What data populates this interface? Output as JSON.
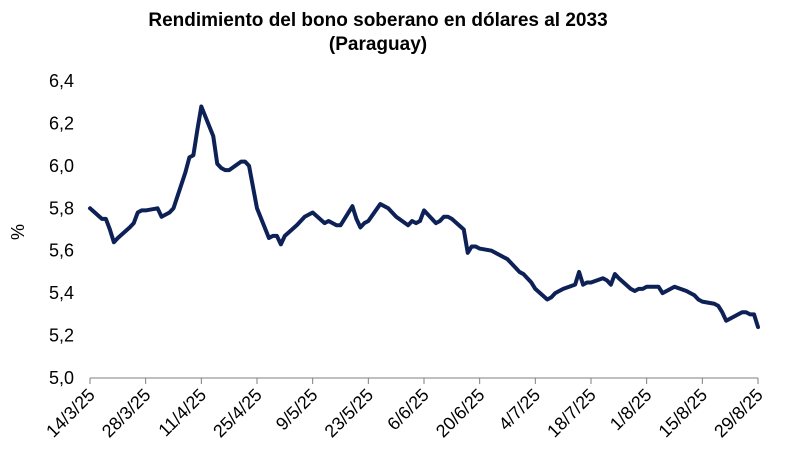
{
  "chart_data": {
    "type": "line",
    "title": "Rendimiento del bono soberano en dólares al 2033",
    "subtitle": "(Paraguay)",
    "xlabel": "",
    "ylabel": "%",
    "ylim": [
      5.0,
      6.4
    ],
    "y_ticks": [
      "6,4",
      "6,2",
      "6,0",
      "5,8",
      "5,6",
      "5,4",
      "5,2",
      "5,0"
    ],
    "x_ticks": [
      "14/3/25",
      "28/3/25",
      "11/4/25",
      "25/4/25",
      "9/5/25",
      "23/5/25",
      "6/6/25",
      "20/6/25",
      "4/7/25",
      "18/7/25",
      "1/8/25",
      "15/8/25",
      "29/8/25"
    ],
    "grid": false,
    "line_color": "#0d2157",
    "series": [
      {
        "name": "",
        "x": [
          "2025-03-14",
          "2025-03-17",
          "2025-03-18",
          "2025-03-19",
          "2025-03-20",
          "2025-03-21",
          "2025-03-24",
          "2025-03-25",
          "2025-03-26",
          "2025-03-27",
          "2025-03-28",
          "2025-03-31",
          "2025-04-01",
          "2025-04-02",
          "2025-04-03",
          "2025-04-04",
          "2025-04-07",
          "2025-04-08",
          "2025-04-09",
          "2025-04-10",
          "2025-04-11",
          "2025-04-14",
          "2025-04-15",
          "2025-04-16",
          "2025-04-17",
          "2025-04-18",
          "2025-04-21",
          "2025-04-22",
          "2025-04-23",
          "2025-04-24",
          "2025-04-25",
          "2025-04-28",
          "2025-04-29",
          "2025-04-30",
          "2025-05-01",
          "2025-05-02",
          "2025-05-05",
          "2025-05-06",
          "2025-05-07",
          "2025-05-08",
          "2025-05-09",
          "2025-05-12",
          "2025-05-13",
          "2025-05-14",
          "2025-05-15",
          "2025-05-16",
          "2025-05-19",
          "2025-05-20",
          "2025-05-21",
          "2025-05-22",
          "2025-05-23",
          "2025-05-26",
          "2025-05-27",
          "2025-05-28",
          "2025-05-29",
          "2025-05-30",
          "2025-06-02",
          "2025-06-03",
          "2025-06-04",
          "2025-06-05",
          "2025-06-06",
          "2025-06-09",
          "2025-06-10",
          "2025-06-11",
          "2025-06-12",
          "2025-06-13",
          "2025-06-16",
          "2025-06-17",
          "2025-06-18",
          "2025-06-19",
          "2025-06-20",
          "2025-06-23",
          "2025-06-24",
          "2025-06-25",
          "2025-06-26",
          "2025-06-27",
          "2025-06-30",
          "2025-07-01",
          "2025-07-02",
          "2025-07-03",
          "2025-07-04",
          "2025-07-07",
          "2025-07-08",
          "2025-07-09",
          "2025-07-10",
          "2025-07-11",
          "2025-07-14",
          "2025-07-15",
          "2025-07-16",
          "2025-07-17",
          "2025-07-18",
          "2025-07-21",
          "2025-07-22",
          "2025-07-23",
          "2025-07-24",
          "2025-07-25",
          "2025-07-28",
          "2025-07-29",
          "2025-07-30",
          "2025-07-31",
          "2025-08-01",
          "2025-08-04",
          "2025-08-05",
          "2025-08-06",
          "2025-08-07",
          "2025-08-08",
          "2025-08-11",
          "2025-08-12",
          "2025-08-13",
          "2025-08-14",
          "2025-08-15",
          "2025-08-18",
          "2025-08-19",
          "2025-08-20",
          "2025-08-21",
          "2025-08-22",
          "2025-08-25",
          "2025-08-26",
          "2025-08-27",
          "2025-08-28",
          "2025-08-29"
        ],
        "values": [
          5.8,
          5.75,
          5.75,
          5.7,
          5.64,
          5.66,
          5.71,
          5.73,
          5.78,
          5.79,
          5.79,
          5.8,
          5.76,
          5.77,
          5.78,
          5.8,
          5.97,
          6.04,
          6.05,
          6.17,
          6.28,
          6.14,
          6.01,
          5.99,
          5.98,
          5.98,
          6.02,
          6.02,
          6.0,
          5.9,
          5.8,
          5.66,
          5.67,
          5.67,
          5.63,
          5.67,
          5.72,
          5.74,
          5.76,
          5.77,
          5.78,
          5.73,
          5.74,
          5.73,
          5.72,
          5.72,
          5.81,
          5.75,
          5.71,
          5.73,
          5.74,
          5.82,
          5.81,
          5.8,
          5.78,
          5.76,
          5.72,
          5.74,
          5.73,
          5.74,
          5.79,
          5.73,
          5.74,
          5.76,
          5.76,
          5.75,
          5.7,
          5.59,
          5.62,
          5.62,
          5.61,
          5.6,
          5.59,
          5.58,
          5.57,
          5.56,
          5.5,
          5.49,
          5.47,
          5.45,
          5.42,
          5.37,
          5.38,
          5.4,
          5.41,
          5.42,
          5.44,
          5.5,
          5.44,
          5.45,
          5.45,
          5.47,
          5.46,
          5.44,
          5.49,
          5.47,
          5.42,
          5.41,
          5.42,
          5.42,
          5.43,
          5.43,
          5.4,
          5.41,
          5.42,
          5.43,
          5.41,
          5.4,
          5.39,
          5.37,
          5.36,
          5.35,
          5.34,
          5.31,
          5.27,
          5.28,
          5.31,
          5.31,
          5.3,
          5.3,
          5.24
        ]
      }
    ]
  }
}
